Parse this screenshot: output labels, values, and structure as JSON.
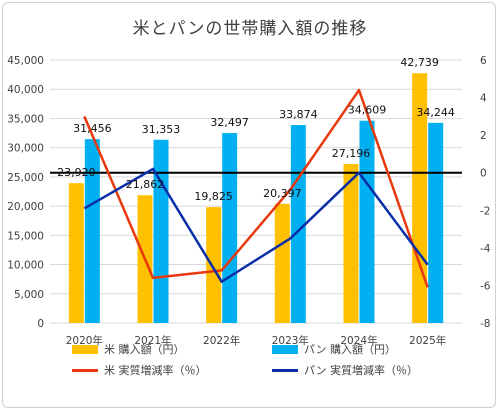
{
  "chart_data": {
    "type": "bar",
    "title": "米とパンの世帯購入額の推移",
    "categories": [
      "2020年",
      "2021年",
      "2022年",
      "2023年",
      "2024年",
      "2025年"
    ],
    "bar_series": [
      {
        "name": "米 購入額（円）",
        "values": [
          23920,
          21862,
          19825,
          20397,
          27196,
          42739
        ],
        "labels": [
          "23,920",
          "21,862",
          "19,825",
          "20,397",
          "27,196",
          "42,739"
        ],
        "color": "#FFC000",
        "axis": "left"
      },
      {
        "name": "パン 購入額（円）",
        "values": [
          31456,
          31353,
          32497,
          33874,
          34609,
          34244
        ],
        "labels": [
          "31,456",
          "31,353",
          "32,497",
          "33,874",
          "34,609",
          "34,244"
        ],
        "color": "#00B0F0",
        "axis": "left"
      }
    ],
    "line_series": [
      {
        "name": "米 実質増減率（％）",
        "values": [
          3.0,
          -5.6,
          -5.2,
          -0.9,
          4.4,
          -6.1
        ],
        "color": "#E8380D",
        "axis": "right"
      },
      {
        "name": "パン 実質増減率（％）",
        "values": [
          -1.9,
          0.2,
          -5.8,
          -3.5,
          0.0,
          -4.9
        ],
        "color": "#0A2FA8",
        "axis": "right"
      }
    ],
    "y_left": {
      "min": 0,
      "max": 45000,
      "ticks": [
        "0",
        "5,000",
        "10,000",
        "15,000",
        "20,000",
        "25,000",
        "30,000",
        "35,000",
        "40,000",
        "45,000"
      ]
    },
    "y_right": {
      "min": -8,
      "max": 6,
      "ticks": [
        "-8",
        "-6",
        "-4",
        "-2",
        "0",
        "2",
        "4",
        "6"
      ]
    },
    "reference_line": {
      "axis": "right",
      "value": 0,
      "color": "#000000"
    },
    "grid": true,
    "legend_position": "bottom"
  }
}
